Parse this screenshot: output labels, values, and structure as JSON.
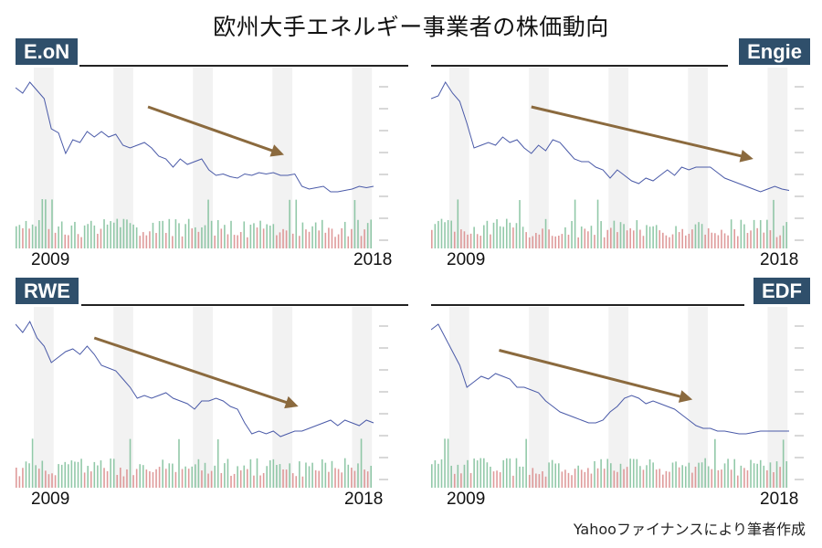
{
  "title": "欧州大手エネルギー事業者の株価動向",
  "credit": "Yahooファイナンスにより筆者作成",
  "colors": {
    "badge_bg": "#2f4f6b",
    "badge_text": "#ffffff",
    "price_line": "#4a5aa8",
    "trend_arrow": "#8b6a3e",
    "volume_up": "#7fbf9a",
    "volume_down": "#d98a8a",
    "band": "#f2f2f2"
  },
  "panels": [
    {
      "company": "E.oN",
      "badge_side": "left",
      "year_start": "2009",
      "year_end": "2018"
    },
    {
      "company": "Engie",
      "badge_side": "right",
      "year_start": "2009",
      "year_end": "2018"
    },
    {
      "company": "RWE",
      "badge_side": "left",
      "year_start": "2009",
      "year_end": "2018"
    },
    {
      "company": "EDF",
      "badge_side": "right",
      "year_start": "2009",
      "year_end": "2018"
    }
  ],
  "chart_data": [
    {
      "type": "line",
      "title": "E.oN",
      "xlabel": "",
      "ylabel": "",
      "x_range": [
        "2009",
        "2018"
      ],
      "note": "Y-axis tick labels illegible; values are relative price level (0=bottom,100=top of plot)",
      "x": [
        0,
        2,
        4,
        6,
        8,
        10,
        12,
        14,
        16,
        18,
        20,
        22,
        24,
        26,
        28,
        30,
        32,
        34,
        36,
        38,
        40,
        42,
        44,
        46,
        48,
        50,
        52,
        54,
        56,
        58,
        60,
        62,
        64,
        66,
        68,
        70,
        72,
        74,
        76,
        78,
        80,
        82,
        84,
        86,
        88,
        90,
        92,
        94,
        96,
        98,
        100
      ],
      "values": [
        88,
        84,
        92,
        86,
        80,
        58,
        55,
        40,
        50,
        48,
        56,
        52,
        56,
        52,
        54,
        46,
        44,
        46,
        48,
        44,
        38,
        36,
        30,
        36,
        32,
        34,
        36,
        28,
        24,
        25,
        23,
        22,
        25,
        24,
        26,
        25,
        26,
        24,
        24,
        25,
        16,
        14,
        15,
        16,
        12,
        12,
        13,
        14,
        16,
        15,
        16
      ],
      "volume_note": "Green/red volume bars along bottom",
      "trend_arrow": {
        "from": [
          37,
          74
        ],
        "to": [
          75,
          39
        ],
        "direction": "down"
      }
    },
    {
      "type": "line",
      "title": "Engie",
      "xlabel": "",
      "ylabel": "",
      "x_range": [
        "2009",
        "2018"
      ],
      "note": "Y-axis tick labels illegible; values are relative price level",
      "x": [
        0,
        2,
        4,
        6,
        8,
        10,
        12,
        14,
        16,
        18,
        20,
        22,
        24,
        26,
        28,
        30,
        32,
        34,
        36,
        38,
        40,
        42,
        44,
        46,
        48,
        50,
        52,
        54,
        56,
        58,
        60,
        62,
        64,
        66,
        68,
        70,
        72,
        74,
        76,
        78,
        80,
        82,
        84,
        86,
        88,
        90,
        92,
        94,
        96,
        98,
        100
      ],
      "values": [
        80,
        82,
        92,
        84,
        78,
        62,
        44,
        46,
        48,
        46,
        52,
        48,
        50,
        44,
        40,
        46,
        42,
        50,
        48,
        42,
        36,
        34,
        34,
        30,
        28,
        22,
        28,
        24,
        20,
        18,
        22,
        20,
        24,
        28,
        24,
        30,
        28,
        30,
        30,
        30,
        26,
        22,
        20,
        18,
        16,
        14,
        12,
        14,
        16,
        14,
        13
      ],
      "trend_arrow": {
        "from": [
          28,
          74
        ],
        "to": [
          90,
          36
        ],
        "direction": "down"
      }
    },
    {
      "type": "line",
      "title": "RWE",
      "xlabel": "",
      "ylabel": "",
      "x_range": [
        "2009",
        "2018"
      ],
      "note": "Y-axis tick labels illegible; values are relative price level",
      "x": [
        0,
        2,
        4,
        6,
        8,
        10,
        12,
        14,
        16,
        18,
        20,
        22,
        24,
        26,
        28,
        30,
        32,
        34,
        36,
        38,
        40,
        42,
        44,
        46,
        48,
        50,
        52,
        54,
        56,
        58,
        60,
        62,
        64,
        66,
        68,
        70,
        72,
        74,
        76,
        78,
        80,
        82,
        84,
        86,
        88,
        90,
        92,
        94,
        96,
        98,
        100
      ],
      "values": [
        90,
        84,
        92,
        80,
        74,
        62,
        66,
        70,
        72,
        68,
        74,
        68,
        60,
        58,
        56,
        50,
        44,
        36,
        38,
        36,
        38,
        40,
        36,
        34,
        32,
        28,
        34,
        34,
        36,
        34,
        30,
        28,
        18,
        10,
        12,
        10,
        12,
        8,
        10,
        12,
        12,
        14,
        16,
        18,
        20,
        16,
        20,
        18,
        16,
        20,
        18
      ],
      "trend_arrow": {
        "from": [
          22,
          80
        ],
        "to": [
          79,
          30
        ],
        "direction": "down"
      }
    },
    {
      "type": "line",
      "title": "EDF",
      "xlabel": "",
      "ylabel": "",
      "x_range": [
        "2009",
        "2018"
      ],
      "note": "Y-axis tick labels illegible; values are relative price level",
      "x": [
        0,
        2,
        4,
        6,
        8,
        10,
        12,
        14,
        16,
        18,
        20,
        22,
        24,
        26,
        28,
        30,
        32,
        34,
        36,
        38,
        40,
        42,
        44,
        46,
        48,
        50,
        52,
        54,
        56,
        58,
        60,
        62,
        64,
        66,
        68,
        70,
        72,
        74,
        76,
        78,
        80,
        82,
        84,
        86,
        88,
        90,
        92,
        94,
        96,
        98,
        100
      ],
      "values": [
        86,
        90,
        80,
        70,
        60,
        44,
        48,
        52,
        50,
        54,
        52,
        50,
        44,
        44,
        42,
        40,
        34,
        30,
        26,
        24,
        22,
        20,
        18,
        18,
        20,
        26,
        30,
        36,
        38,
        36,
        32,
        34,
        32,
        30,
        28,
        24,
        20,
        16,
        14,
        14,
        12,
        12,
        11,
        10,
        10,
        11,
        12,
        12,
        12,
        12,
        12
      ],
      "trend_arrow": {
        "from": [
          19,
          71
        ],
        "to": [
          73,
          35
        ],
        "direction": "down"
      }
    }
  ]
}
